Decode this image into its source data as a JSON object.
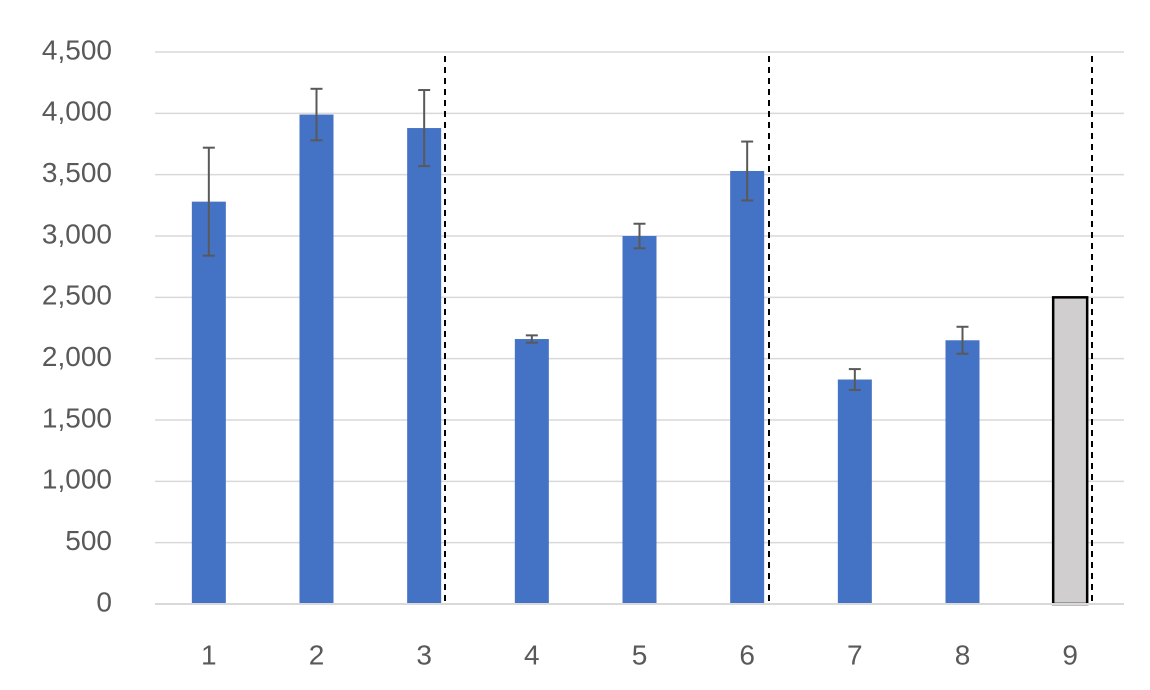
{
  "chart_data": {
    "type": "bar",
    "categories": [
      "1",
      "2",
      "3",
      "4",
      "5",
      "6",
      "7",
      "8",
      "9"
    ],
    "values": [
      3280,
      3990,
      3880,
      2160,
      3000,
      3530,
      1830,
      2150,
      2500
    ],
    "errors": [
      440,
      210,
      310,
      30,
      100,
      240,
      85,
      110,
      null
    ],
    "colors": [
      "#4472c4",
      "#4472c4",
      "#4472c4",
      "#4472c4",
      "#4472c4",
      "#4472c4",
      "#4472c4",
      "#4472c4",
      "#d0cece"
    ],
    "outlines": [
      null,
      null,
      null,
      null,
      null,
      null,
      null,
      null,
      "#000000"
    ],
    "error_color": "#595959",
    "ylim": [
      0,
      4500
    ],
    "yticks": [
      0,
      500,
      {
        "value": 1000,
        "label": "1,000"
      },
      {
        "value": 1500,
        "label": "1,500"
      },
      {
        "value": 2000,
        "label": "2,000"
      },
      {
        "value": 2500,
        "label": "2,500"
      },
      {
        "value": 3000,
        "label": "3,000"
      },
      {
        "value": 3500,
        "label": "3,500"
      },
      {
        "value": 4000,
        "label": "4,000"
      },
      {
        "value": 4500,
        "label": "4,500"
      }
    ],
    "grid": true
  }
}
